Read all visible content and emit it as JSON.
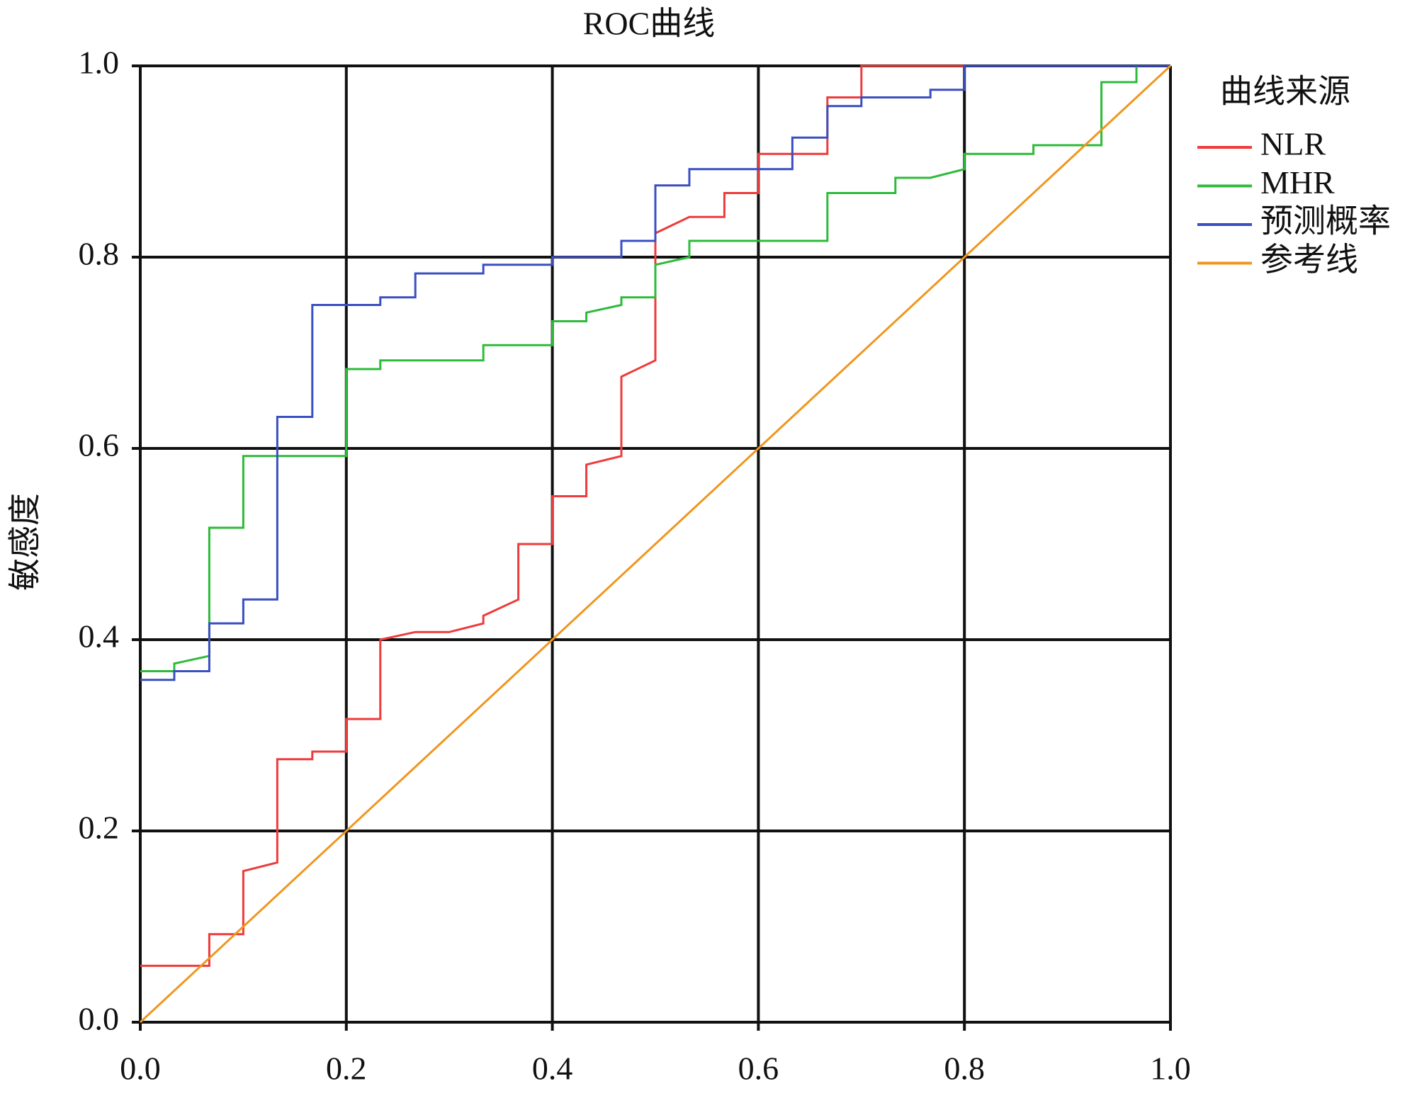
{
  "chart_data": {
    "type": "line",
    "title": "ROC曲线",
    "y_label": "敏感度",
    "legend_title": "曲线来源",
    "legend": "right",
    "grid": true,
    "xlim": [
      0,
      1
    ],
    "ylim": [
      0,
      1
    ],
    "xticks": [
      {
        "value": 0,
        "label": "0.0"
      },
      0.2,
      0.4,
      0.6,
      0.8,
      {
        "value": 1,
        "label": "1.0"
      }
    ],
    "yticks": [
      {
        "value": 0,
        "label": "0.0"
      },
      0.2,
      0.4,
      0.6,
      0.8,
      {
        "value": 1,
        "label": "1.0"
      }
    ],
    "series": [
      {
        "name": "NLR",
        "color": "#ee3b3b",
        "x": [
          0,
          0.067,
          0.067,
          0.1,
          0.1,
          0.133,
          0.133,
          0.167,
          0.167,
          0.2,
          0.2,
          0.233,
          0.233,
          0.267,
          0.3,
          0.333,
          0.333,
          0.367,
          0.367,
          0.4,
          0.4,
          0.433,
          0.433,
          0.467,
          0.467,
          0.5,
          0.5,
          0.533,
          0.567,
          0.567,
          0.6,
          0.6,
          0.667,
          0.667,
          0.7,
          0.7,
          1
        ],
        "values": [
          0.059,
          0.059,
          0.092,
          0.092,
          0.158,
          0.167,
          0.275,
          0.275,
          0.283,
          0.283,
          0.317,
          0.317,
          0.4,
          0.408,
          0.408,
          0.417,
          0.425,
          0.442,
          0.5,
          0.5,
          0.55,
          0.55,
          0.583,
          0.592,
          0.675,
          0.692,
          0.825,
          0.842,
          0.842,
          0.867,
          0.867,
          0.908,
          0.908,
          0.967,
          0.967,
          1,
          1
        ]
      },
      {
        "name": "MHR",
        "color": "#2dbb3a",
        "x": [
          0,
          0.033,
          0.033,
          0.067,
          0.067,
          0.1,
          0.1,
          0.2,
          0.2,
          0.233,
          0.233,
          0.333,
          0.333,
          0.4,
          0.4,
          0.433,
          0.433,
          0.467,
          0.467,
          0.5,
          0.5,
          0.533,
          0.533,
          0.667,
          0.667,
          0.733,
          0.733,
          0.767,
          0.8,
          0.8,
          0.867,
          0.867,
          0.933,
          0.933,
          0.967,
          0.967,
          1
        ],
        "values": [
          0.367,
          0.367,
          0.375,
          0.383,
          0.517,
          0.517,
          0.592,
          0.592,
          0.683,
          0.683,
          0.692,
          0.692,
          0.708,
          0.708,
          0.733,
          0.733,
          0.742,
          0.75,
          0.758,
          0.758,
          0.792,
          0.8,
          0.817,
          0.817,
          0.867,
          0.867,
          0.883,
          0.883,
          0.892,
          0.908,
          0.908,
          0.917,
          0.917,
          0.983,
          0.983,
          1,
          1
        ]
      },
      {
        "name": "预测概率",
        "color": "#3a4fc0",
        "x": [
          0,
          0.033,
          0.033,
          0.067,
          0.067,
          0.1,
          0.1,
          0.133,
          0.133,
          0.167,
          0.167,
          0.233,
          0.233,
          0.267,
          0.267,
          0.333,
          0.333,
          0.4,
          0.4,
          0.467,
          0.467,
          0.5,
          0.5,
          0.533,
          0.533,
          0.633,
          0.633,
          0.667,
          0.667,
          0.7,
          0.7,
          0.767,
          0.767,
          0.8,
          0.8,
          1
        ],
        "values": [
          0.358,
          0.358,
          0.367,
          0.367,
          0.417,
          0.417,
          0.442,
          0.442,
          0.633,
          0.633,
          0.75,
          0.75,
          0.758,
          0.758,
          0.783,
          0.783,
          0.792,
          0.792,
          0.8,
          0.8,
          0.817,
          0.817,
          0.875,
          0.875,
          0.892,
          0.892,
          0.925,
          0.925,
          0.958,
          0.958,
          0.967,
          0.967,
          0.975,
          0.975,
          1,
          1
        ]
      },
      {
        "name": "参考线",
        "color": "#f0961e",
        "x": [
          0,
          1
        ],
        "values": [
          0,
          1
        ]
      }
    ]
  }
}
